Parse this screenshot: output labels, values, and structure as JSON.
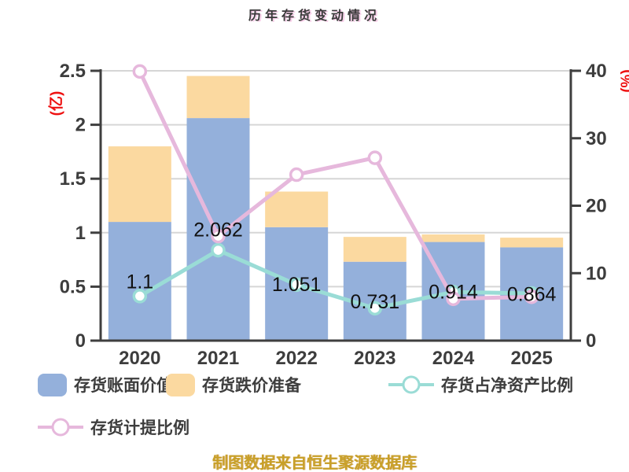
{
  "title": "历年存货变动情况",
  "caption": "制图数据来自恒生聚源数据库",
  "chart_data": {
    "type": "bar",
    "subtype": "stacked-bar-with-dual-axis-lines",
    "title": "历年存货变动情况",
    "categories": [
      "2020",
      "2021",
      "2022",
      "2023",
      "2024",
      "2025"
    ],
    "left_axis": {
      "unit": "(亿)",
      "min": 0,
      "max": 2.5,
      "ticks": [
        0,
        0.5,
        1,
        1.5,
        2,
        2.5
      ],
      "tick_labels": [
        "0",
        "0.5",
        "1",
        "1.5",
        "2",
        "2.5"
      ]
    },
    "right_axis": {
      "unit": "(%)",
      "min": 0,
      "max": 40,
      "ticks": [
        0,
        10,
        20,
        30,
        40
      ],
      "tick_labels": [
        "0",
        "10",
        "20",
        "30",
        "40"
      ]
    },
    "grid": "horizontal",
    "legend_position": "bottom-left",
    "series": [
      {
        "name": "存货账面价值",
        "type": "bar",
        "stack": 1,
        "color": "#94b0db",
        "values": [
          1.1,
          2.062,
          1.051,
          0.731,
          0.914,
          0.864
        ],
        "labels": [
          "1.1",
          "2.062",
          "1.051",
          "0.731",
          "0.914",
          "0.864"
        ]
      },
      {
        "name": "存货跌价准备",
        "type": "bar",
        "stack": 1,
        "color": "#fbd9a0",
        "values": [
          0.7,
          0.39,
          0.33,
          0.23,
          0.07,
          0.09
        ]
      },
      {
        "name": "存货占净资产比例",
        "type": "line",
        "axis": "right",
        "color": "#9adcd6",
        "marker_fill": "#ffffff",
        "values": [
          6.6,
          13.4,
          8.3,
          4.8,
          7.2,
          7.0
        ]
      },
      {
        "name": "存货计提比例",
        "type": "line",
        "axis": "right",
        "color": "#e6b8dc",
        "marker_fill": "#ffffff",
        "values": [
          39.9,
          15.5,
          24.6,
          27.1,
          6.2,
          6.5
        ]
      }
    ],
    "colors": {
      "axis": "#3f3f3f",
      "grid": "#d6d6d6",
      "tick_label": "#3d3d3d",
      "data_label": "#111111",
      "axis_unit": "#ee1111",
      "title": "#3a3a3a",
      "caption": "#c8a028",
      "background": "#ffffff"
    }
  }
}
